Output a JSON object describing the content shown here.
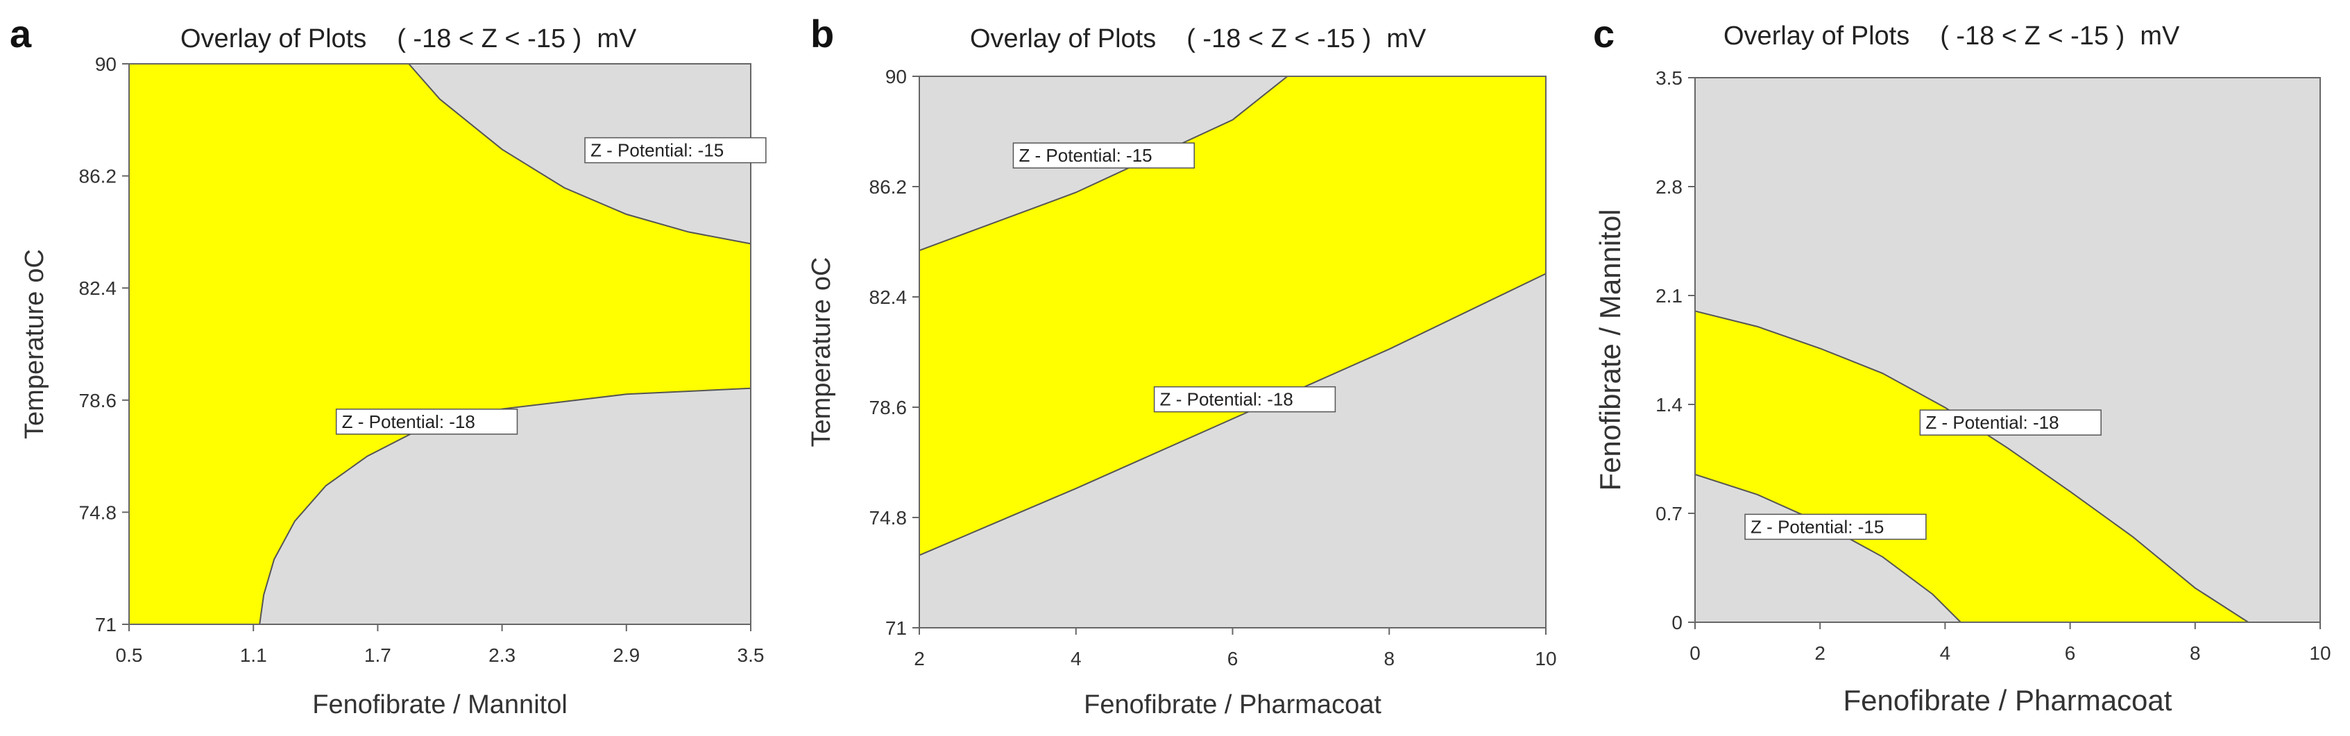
{
  "chart_data": [
    {
      "panel_label": "a",
      "type": "contour-overlay",
      "title": "Overlay of Plots",
      "constraint": "( -18 < Z < -15 )",
      "unit": "mV",
      "xlabel": "Fenofibrate / Mannitol",
      "ylabel": "Temperature",
      "ylabel_unit": "oC",
      "xlim": [
        0.5,
        3.5
      ],
      "ylim": [
        71,
        90
      ],
      "xticks": [
        "0.5",
        "1.1",
        "1.7",
        "2.3",
        "2.9",
        "3.5"
      ],
      "yticks": [
        "71",
        "74.8",
        "78.6",
        "82.4",
        "86.2",
        "90"
      ],
      "region_color": "#ffff00",
      "background_color": "#dcdcdc",
      "contours": [
        {
          "label": "Z - Potential: -15",
          "label_at": [
            2.7,
            87.0
          ],
          "points": [
            [
              1.85,
              90
            ],
            [
              2.0,
              88.8
            ],
            [
              2.3,
              87.1
            ],
            [
              2.6,
              85.8
            ],
            [
              2.9,
              84.9
            ],
            [
              3.2,
              84.3
            ],
            [
              3.5,
              83.9
            ]
          ]
        },
        {
          "label": "Z - Potential: -18",
          "label_at": [
            1.5,
            77.8
          ],
          "points": [
            [
              1.13,
              71
            ],
            [
              1.15,
              72
            ],
            [
              1.2,
              73.2
            ],
            [
              1.3,
              74.5
            ],
            [
              1.45,
              75.7
            ],
            [
              1.65,
              76.7
            ],
            [
              1.9,
              77.6
            ],
            [
              2.3,
              78.3
            ],
            [
              2.9,
              78.8
            ],
            [
              3.5,
              79.0
            ]
          ]
        }
      ]
    },
    {
      "panel_label": "b",
      "type": "contour-overlay",
      "title": "Overlay of Plots",
      "constraint": "( -18 < Z < -15 )",
      "unit": "mV",
      "xlabel": "Fenofibrate / Pharmacoat",
      "ylabel": "Temperature",
      "ylabel_unit": "oC",
      "xlim": [
        2,
        10
      ],
      "ylim": [
        71,
        90
      ],
      "xticks": [
        "2",
        "4",
        "6",
        "8",
        "10"
      ],
      "yticks": [
        "71",
        "74.8",
        "78.6",
        "82.4",
        "86.2",
        "90"
      ],
      "region_color": "#ffff00",
      "background_color": "#dcdcdc",
      "contours": [
        {
          "label": "Z - Potential: -15",
          "label_at": [
            3.2,
            87.2
          ],
          "points": [
            [
              2,
              84.0
            ],
            [
              4,
              86.0
            ],
            [
              6,
              88.5
            ],
            [
              6.7,
              90
            ]
          ]
        },
        {
          "label": "Z - Potential: -18",
          "label_at": [
            5.0,
            78.8
          ],
          "points": [
            [
              2,
              73.5
            ],
            [
              4,
              75.8
            ],
            [
              6,
              78.2
            ],
            [
              8,
              80.6
            ],
            [
              10,
              83.2
            ]
          ]
        }
      ]
    },
    {
      "panel_label": "c",
      "type": "contour-overlay",
      "title": "Overlay of Plots",
      "constraint": "( -18 < Z < -15 )",
      "unit": "mV",
      "xlabel": "Fenofibrate / Pharmacoat",
      "ylabel": "Fenofibrate / Mannitol",
      "ylabel_unit": "",
      "xlim": [
        0,
        10
      ],
      "ylim": [
        0,
        3.5
      ],
      "xticks": [
        "0",
        "2",
        "4",
        "6",
        "8",
        "10"
      ],
      "yticks": [
        "0",
        "0.7",
        "1.4",
        "2.1",
        "2.8",
        "3.5"
      ],
      "region_color": "#ffff00",
      "background_color": "#dcdcdc",
      "contours": [
        {
          "label": "Z - Potential: -18",
          "label_at": [
            3.6,
            1.27
          ],
          "points": [
            [
              0,
              2.0
            ],
            [
              1,
              1.9
            ],
            [
              2,
              1.76
            ],
            [
              3,
              1.6
            ],
            [
              4,
              1.38
            ],
            [
              5,
              1.12
            ],
            [
              6,
              0.84
            ],
            [
              7,
              0.55
            ],
            [
              8,
              0.22
            ],
            [
              8.85,
              0
            ]
          ]
        },
        {
          "label": "Z - Potential: -15",
          "label_at": [
            0.8,
            0.6
          ],
          "points": [
            [
              0,
              0.95
            ],
            [
              1,
              0.82
            ],
            [
              2,
              0.64
            ],
            [
              3,
              0.42
            ],
            [
              3.8,
              0.18
            ],
            [
              4.25,
              0
            ]
          ]
        }
      ]
    }
  ]
}
